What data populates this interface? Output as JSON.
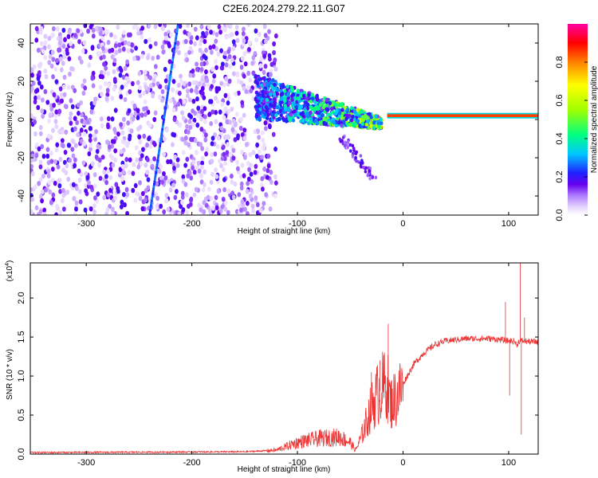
{
  "figure_title": "C2E6.2024.279.22.11.G07",
  "chart_data": [
    {
      "type": "heatmap",
      "title": "C2E6.2024.279.22.11.G07",
      "xlabel": "Height of straight line (km)",
      "ylabel": "Frequency (Hz)",
      "xlim": [
        -353,
        128
      ],
      "ylim": [
        -50,
        50
      ],
      "x_ticks": [
        -300,
        -200,
        -100,
        0,
        100
      ],
      "x_tick_labels": [
        "-300",
        "-200",
        "-100",
        "0",
        "100"
      ],
      "y_ticks": [
        -40,
        -20,
        0,
        20,
        40
      ],
      "y_tick_labels": [
        "-40",
        "-20",
        "0",
        "20",
        "40"
      ],
      "colorbar": {
        "label": "Normalized spectral amplitude",
        "range": [
          0,
          1
        ],
        "ticks": [
          0.0,
          0.2,
          0.4,
          0.6,
          0.8
        ],
        "tick_labels": [
          "0.0",
          "0.2",
          "0.4",
          "0.6",
          "0.8"
        ]
      },
      "features": {
        "noise_region_x": [
          -353,
          -130
        ],
        "diagonal_streak": {
          "x_start": -240,
          "y_start": -50,
          "x_end": -213,
          "y_end": 50
        },
        "transition_region_x": [
          -140,
          -20
        ],
        "carrier_line": {
          "x_start": -15,
          "x_end": 128,
          "frequency": 2,
          "amplitude": 0.85
        }
      }
    },
    {
      "type": "line",
      "xlabel": "Height of straight line (km)",
      "ylabel": "SNR (10 * v/v)",
      "y_multiplier_label": "(x10",
      "y_multiplier_exp": "4",
      "xlim": [
        -353,
        128
      ],
      "ylim": [
        0,
        2.45
      ],
      "x_ticks": [
        -300,
        -200,
        -100,
        0,
        100
      ],
      "x_tick_labels": [
        "-300",
        "-200",
        "-100",
        "0",
        "100"
      ],
      "y_ticks": [
        0.0,
        0.5,
        1.0,
        1.5,
        2.0
      ],
      "y_tick_labels": [
        "0.0",
        "0.5",
        "1.0",
        "1.5",
        "2.0"
      ],
      "color": "#ee3333",
      "envelope": {
        "x": [
          -353,
          -150,
          -120,
          -100,
          -80,
          -60,
          -50,
          -45,
          -40,
          -35,
          -30,
          -25,
          -20,
          -15,
          -12,
          -5,
          0,
          10,
          20,
          30,
          40,
          60,
          80,
          90,
          95,
          100,
          105,
          108,
          110,
          115,
          120,
          128
        ],
        "y": [
          0.02,
          0.03,
          0.05,
          0.15,
          0.2,
          0.22,
          0.15,
          0.05,
          0.2,
          0.4,
          0.6,
          0.75,
          0.85,
          0.9,
          0.65,
          0.75,
          0.9,
          1.15,
          1.3,
          1.4,
          1.45,
          1.48,
          1.48,
          1.47,
          1.46,
          1.45,
          1.45,
          1.4,
          1.45,
          1.45,
          1.44,
          1.44
        ]
      },
      "spikes": [
        {
          "x": -14,
          "y": 1.67
        },
        {
          "x": -22,
          "y": 1.2
        },
        {
          "x": -30,
          "y": 1.05
        },
        {
          "x": 97,
          "y": 1.95
        },
        {
          "x": 101,
          "y": 0.75
        },
        {
          "x": 111,
          "y": 2.5
        },
        {
          "x": 112,
          "y": 0.25
        },
        {
          "x": 115,
          "y": 1.75
        }
      ]
    }
  ]
}
